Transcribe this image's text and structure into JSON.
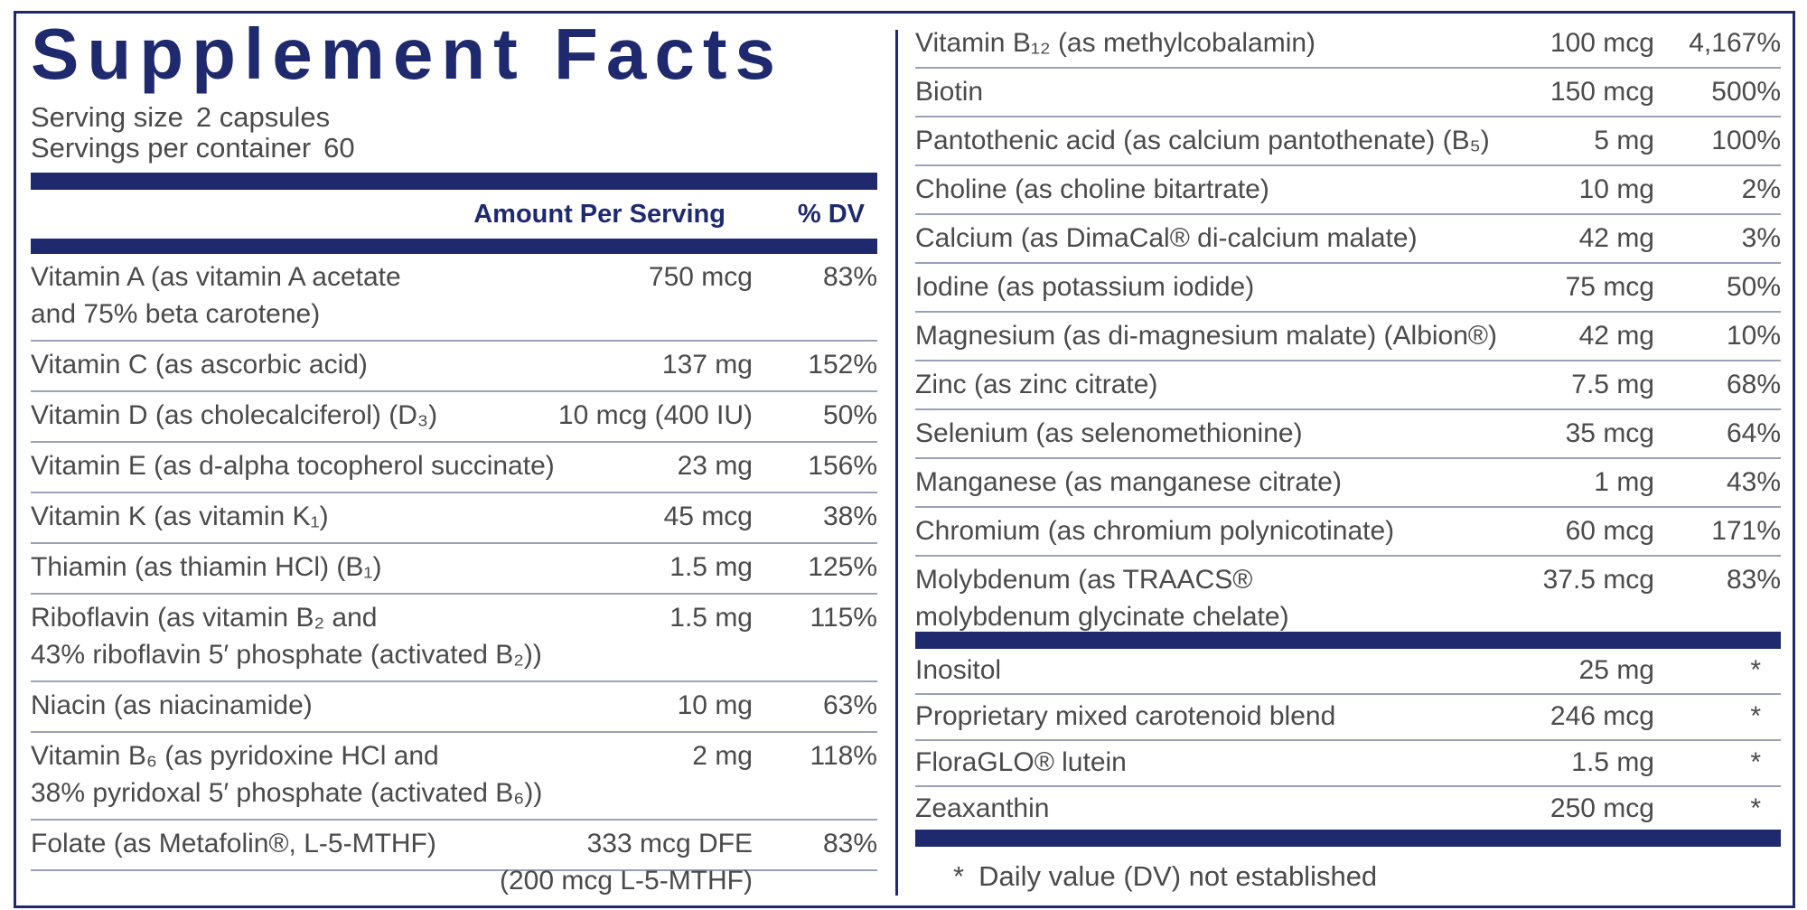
{
  "title": "Supplement Facts",
  "serving_size": {
    "label": "Serving size",
    "value": "2 capsules"
  },
  "servings_per_container": {
    "label": "Servings per container",
    "value": "60"
  },
  "header": {
    "amount": "Amount Per Serving",
    "dv": "% DV"
  },
  "left_column": [
    {
      "name": [
        "Vitamin A (as vitamin A acetate",
        "and 75% beta carotene)"
      ],
      "amount": [
        "750 mcg"
      ],
      "dv": "83%"
    },
    {
      "name": [
        "Vitamin C (as ascorbic acid)"
      ],
      "amount": [
        "137 mg"
      ],
      "dv": "152%"
    },
    {
      "name": [
        "Vitamin D (as cholecalciferol) (D₃)"
      ],
      "amount": [
        "10 mcg (400 IU)"
      ],
      "dv": "50%"
    },
    {
      "name": [
        "Vitamin E (as d-alpha tocopherol succinate)"
      ],
      "amount": [
        "23 mg"
      ],
      "dv": "156%"
    },
    {
      "name": [
        "Vitamin K (as vitamin K₁)"
      ],
      "amount": [
        "45 mcg"
      ],
      "dv": "38%"
    },
    {
      "name": [
        "Thiamin (as thiamin HCl) (B₁)"
      ],
      "amount": [
        "1.5 mg"
      ],
      "dv": "125%"
    },
    {
      "name": [
        "Riboflavin (as vitamin B₂ and",
        "43% riboflavin 5′ phosphate (activated B₂))"
      ],
      "amount": [
        "1.5 mg"
      ],
      "dv": "115%"
    },
    {
      "name": [
        "Niacin (as niacinamide)"
      ],
      "amount": [
        "10 mg"
      ],
      "dv": "63%"
    },
    {
      "name": [
        "Vitamin B₆ (as pyridoxine HCl and",
        "38% pyridoxal 5′ phosphate (activated B₆))"
      ],
      "amount": [
        "2 mg"
      ],
      "dv": "118%"
    },
    {
      "name": [
        "Folate (as Metafolin®, L-5-MTHF)"
      ],
      "amount": [
        "333 mcg DFE",
        "(200 mcg L-5-MTHF)"
      ],
      "dv": "83%"
    }
  ],
  "right_column": [
    {
      "name": [
        "Vitamin B₁₂ (as methylcobalamin)"
      ],
      "amount": [
        "100 mcg"
      ],
      "dv": "4,167%"
    },
    {
      "name": [
        "Biotin"
      ],
      "amount": [
        "150 mcg"
      ],
      "dv": "500%"
    },
    {
      "name": [
        "Pantothenic acid (as calcium pantothenate) (B₅)"
      ],
      "amount": [
        "5 mg"
      ],
      "dv": "100%"
    },
    {
      "name": [
        "Choline (as choline bitartrate)"
      ],
      "amount": [
        "10 mg"
      ],
      "dv": "2%"
    },
    {
      "name": [
        "Calcium (as DimaCal® di-calcium malate)"
      ],
      "amount": [
        "42 mg"
      ],
      "dv": "3%"
    },
    {
      "name": [
        "Iodine (as potassium iodide)"
      ],
      "amount": [
        "75 mcg"
      ],
      "dv": "50%"
    },
    {
      "name": [
        "Magnesium (as di-magnesium malate) (Albion®)"
      ],
      "amount": [
        "42 mg"
      ],
      "dv": "10%"
    },
    {
      "name": [
        "Zinc (as zinc citrate)"
      ],
      "amount": [
        "7.5 mg"
      ],
      "dv": "68%"
    },
    {
      "name": [
        "Selenium (as selenomethionine)"
      ],
      "amount": [
        "35 mcg"
      ],
      "dv": "64%"
    },
    {
      "name": [
        "Manganese (as manganese citrate)"
      ],
      "amount": [
        "1 mg"
      ],
      "dv": "43%"
    },
    {
      "name": [
        "Chromium (as chromium polynicotinate)"
      ],
      "amount": [
        "60 mcg"
      ],
      "dv": "171%"
    },
    {
      "name": [
        "Molybdenum (as TRAACS®",
        "molybdenum glycinate chelate)"
      ],
      "amount": [
        "37.5 mcg"
      ],
      "dv": "83%"
    }
  ],
  "other_ingredients": [
    {
      "name": [
        "Inositol"
      ],
      "amount": [
        "25 mg"
      ],
      "dv": "*"
    },
    {
      "name": [
        "Proprietary mixed carotenoid blend"
      ],
      "amount": [
        "246 mcg"
      ],
      "dv": "*"
    },
    {
      "name": [
        "FloraGLO® lutein"
      ],
      "amount": [
        "1.5 mg"
      ],
      "dv": "*"
    },
    {
      "name": [
        "Zeaxanthin"
      ],
      "amount": [
        "250 mcg"
      ],
      "dv": "*"
    }
  ],
  "footnote": {
    "symbol": "*",
    "text": "Daily value (DV) not established"
  }
}
